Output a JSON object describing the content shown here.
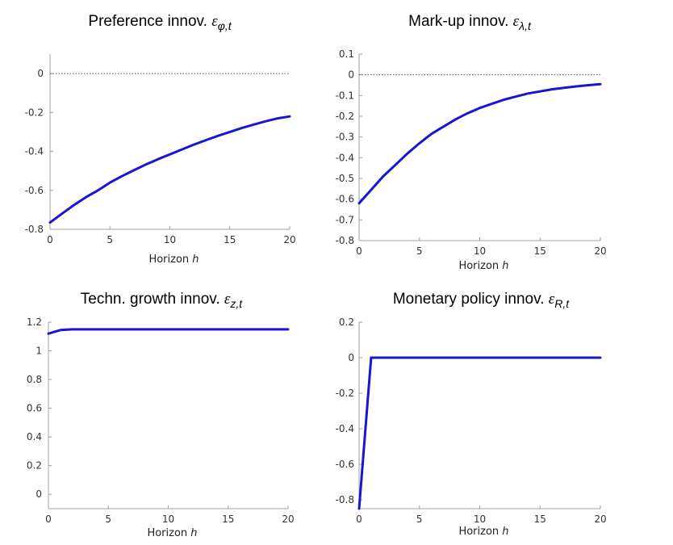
{
  "chart_data": [
    {
      "type": "line",
      "title": {
        "text": "Preference innov.",
        "symbol": "ε",
        "subscript": "φ,t"
      },
      "xlabel": {
        "text": "Horizon",
        "var": "h"
      },
      "xlim": [
        0,
        20
      ],
      "ylim": [
        -0.8,
        0.1
      ],
      "xticks": [
        0,
        5,
        10,
        15,
        20
      ],
      "xtick_labels": [
        "0",
        "5",
        "10",
        "15",
        "20"
      ],
      "yticks": [
        -0.8,
        -0.6,
        -0.4,
        -0.2,
        0
      ],
      "ytick_labels": [
        "-0.8",
        "-0.6",
        "-0.4",
        "-0.2",
        "0"
      ],
      "zero_line": true,
      "grid": false,
      "line_color": "#1a14d8",
      "x": [
        0,
        1,
        2,
        3,
        4,
        5,
        6,
        7,
        8,
        9,
        10,
        11,
        12,
        13,
        14,
        15,
        16,
        17,
        18,
        19,
        20
      ],
      "y": [
        -0.765,
        -0.72,
        -0.675,
        -0.635,
        -0.6,
        -0.56,
        -0.527,
        -0.497,
        -0.467,
        -0.44,
        -0.415,
        -0.39,
        -0.365,
        -0.342,
        -0.32,
        -0.3,
        -0.28,
        -0.262,
        -0.245,
        -0.23,
        -0.22
      ]
    },
    {
      "type": "line",
      "title": {
        "text": "Mark-up innov.",
        "symbol": "ε",
        "subscript": "λ,t"
      },
      "xlabel": {
        "text": "Horizon",
        "var": "h"
      },
      "xlim": [
        0,
        20
      ],
      "ylim": [
        -0.8,
        0.1
      ],
      "xticks": [
        0,
        5,
        10,
        15,
        20
      ],
      "xtick_labels": [
        "0",
        "5",
        "10",
        "15",
        "20"
      ],
      "yticks": [
        -0.8,
        -0.7,
        -0.6,
        -0.5,
        -0.4,
        -0.3,
        -0.2,
        -0.1,
        0,
        0.1
      ],
      "ytick_labels": [
        "-0.8",
        "-0.7",
        "-0.6",
        "-0.5",
        "-0.4",
        "-0.3",
        "-0.2",
        "-0.1",
        "0",
        "0.1"
      ],
      "zero_line": true,
      "grid": false,
      "line_color": "#1a14d8",
      "x": [
        0,
        1,
        2,
        3,
        4,
        5,
        6,
        7,
        8,
        9,
        10,
        11,
        12,
        13,
        14,
        15,
        16,
        17,
        18,
        19,
        20
      ],
      "y": [
        -0.62,
        -0.555,
        -0.49,
        -0.435,
        -0.38,
        -0.33,
        -0.285,
        -0.25,
        -0.215,
        -0.185,
        -0.16,
        -0.14,
        -0.12,
        -0.105,
        -0.09,
        -0.08,
        -0.07,
        -0.063,
        -0.056,
        -0.05,
        -0.045
      ]
    },
    {
      "type": "line",
      "title": {
        "text": "Techn. growth innov.",
        "symbol": "ε",
        "subscript": "z,t"
      },
      "xlabel": {
        "text": "Horizon",
        "var": "h"
      },
      "xlim": [
        0,
        20
      ],
      "ylim": [
        -0.1,
        1.2
      ],
      "xticks": [
        0,
        5,
        10,
        15,
        20
      ],
      "xtick_labels": [
        "0",
        "5",
        "10",
        "15",
        "20"
      ],
      "yticks": [
        0,
        0.2,
        0.4,
        0.6,
        0.8,
        1,
        1.2
      ],
      "ytick_labels": [
        "0",
        "0.2",
        "0.4",
        "0.6",
        "0.8",
        "1",
        "1.2"
      ],
      "zero_line": false,
      "grid": false,
      "line_color": "#1a14d8",
      "x": [
        0,
        1,
        2,
        3,
        4,
        5,
        6,
        7,
        8,
        9,
        10,
        11,
        12,
        13,
        14,
        15,
        16,
        17,
        18,
        19,
        20
      ],
      "y": [
        1.12,
        1.145,
        1.15,
        1.15,
        1.15,
        1.15,
        1.15,
        1.15,
        1.15,
        1.15,
        1.15,
        1.15,
        1.15,
        1.15,
        1.15,
        1.15,
        1.15,
        1.15,
        1.15,
        1.15,
        1.15
      ]
    },
    {
      "type": "line",
      "title": {
        "text": "Monetary policy innov.",
        "symbol": "ε",
        "subscript": "R,t"
      },
      "xlabel": {
        "text": "Horizon",
        "var": "h"
      },
      "xlim": [
        0,
        20
      ],
      "ylim": [
        -0.85,
        0.2
      ],
      "xticks": [
        0,
        5,
        10,
        15,
        20
      ],
      "xtick_labels": [
        "0",
        "5",
        "10",
        "15",
        "20"
      ],
      "yticks": [
        -0.8,
        -0.6,
        -0.4,
        -0.2,
        0,
        0.2
      ],
      "ytick_labels": [
        "-0.8",
        "-0.6",
        "-0.4",
        "-0.2",
        "0",
        "0.2"
      ],
      "zero_line": false,
      "grid": false,
      "line_color": "#1a14d8",
      "x": [
        0,
        1,
        2,
        3,
        4,
        5,
        6,
        7,
        8,
        9,
        10,
        11,
        12,
        13,
        14,
        15,
        16,
        17,
        18,
        19,
        20
      ],
      "y": [
        -0.85,
        0,
        0,
        0,
        0,
        0,
        0,
        0,
        0,
        0,
        0,
        0,
        0,
        0,
        0,
        0,
        0,
        0,
        0,
        0,
        0
      ]
    }
  ]
}
